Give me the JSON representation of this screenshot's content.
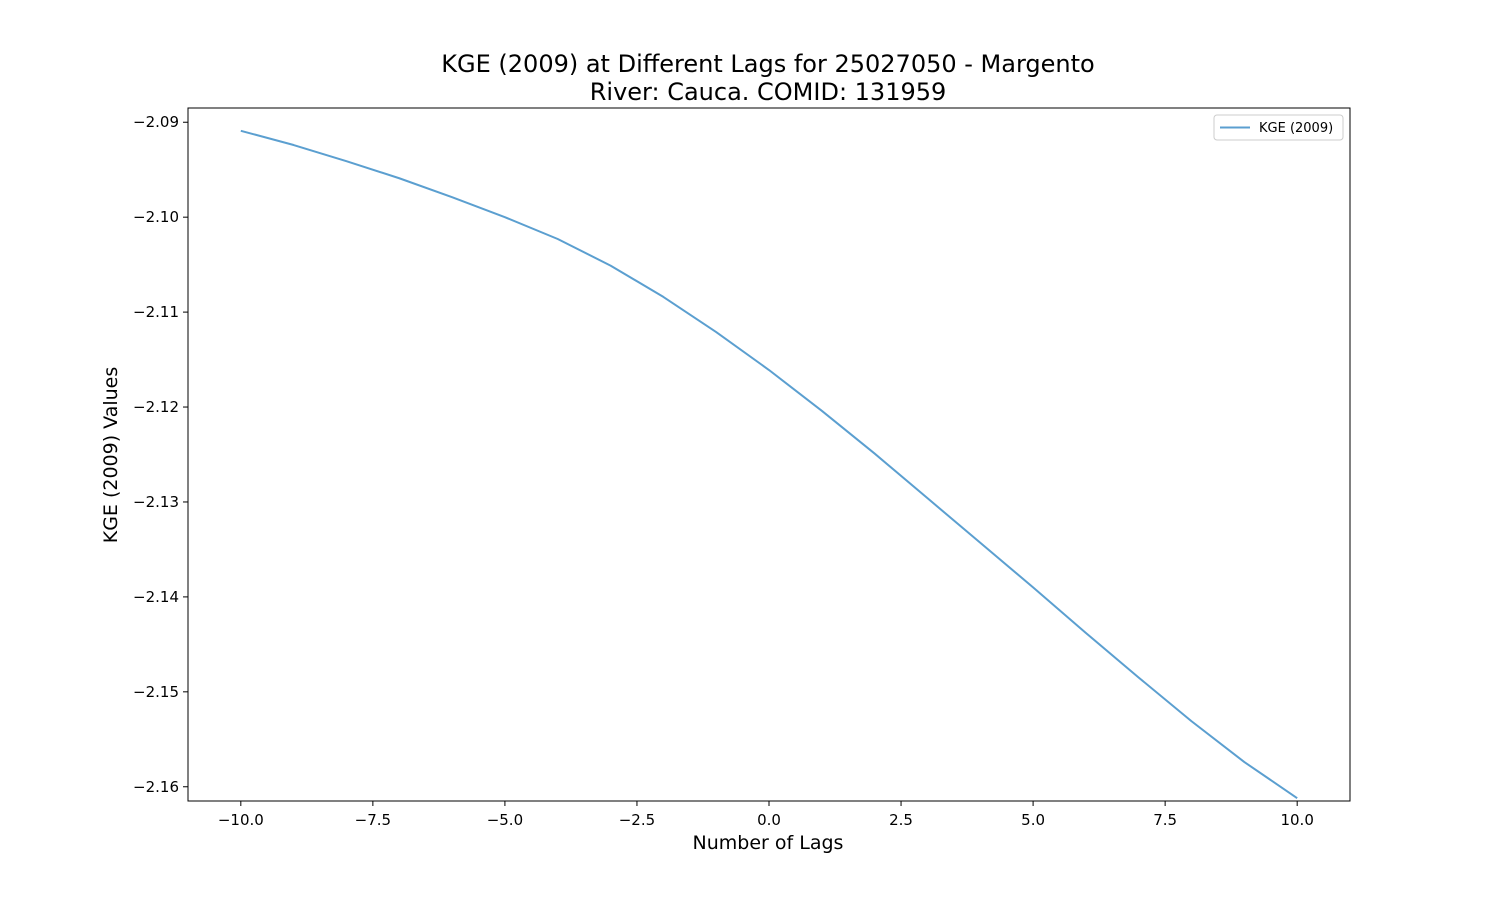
{
  "chart_data": {
    "type": "line",
    "title_line1": "KGE (2009) at Different Lags for 25027050 - Margento",
    "title_line2": "River: Cauca. COMID: 131959",
    "xlabel": "Number of Lags",
    "ylabel": "KGE (2009) Values",
    "xlim": [
      -11,
      11
    ],
    "ylim": [
      -2.1615,
      -2.0885
    ],
    "grid": false,
    "legend_position": "top-right",
    "x_ticks": [
      -10.0,
      -7.5,
      -5.0,
      -2.5,
      0.0,
      2.5,
      5.0,
      7.5,
      10.0
    ],
    "x_tick_labels": [
      "−10.0",
      "−7.5",
      "−5.0",
      "−2.5",
      "0.0",
      "2.5",
      "5.0",
      "7.5",
      "10.0"
    ],
    "y_ticks": [
      -2.09,
      -2.1,
      -2.11,
      -2.12,
      -2.13,
      -2.14,
      -2.15,
      -2.16
    ],
    "y_tick_labels": [
      "−2.09",
      "−2.10",
      "−2.11",
      "−2.12",
      "−2.13",
      "−2.14",
      "−2.15",
      "−2.16"
    ],
    "series": [
      {
        "name": "KGE (2009)",
        "color": "#5b9fd0",
        "x": [
          -10,
          -9,
          -8,
          -7,
          -6,
          -5,
          -4,
          -3,
          -2,
          -1,
          0,
          1,
          2,
          3,
          4,
          5,
          6,
          7,
          8,
          9,
          10
        ],
        "y": [
          -2.0909,
          -2.0924,
          -2.0941,
          -2.0959,
          -2.0979,
          -2.1,
          -2.1023,
          -2.1051,
          -2.1084,
          -2.1121,
          -2.1161,
          -2.1204,
          -2.1249,
          -2.1296,
          -2.1343,
          -2.139,
          -2.1438,
          -2.1485,
          -2.1531,
          -2.1574,
          -2.1612
        ]
      }
    ]
  }
}
